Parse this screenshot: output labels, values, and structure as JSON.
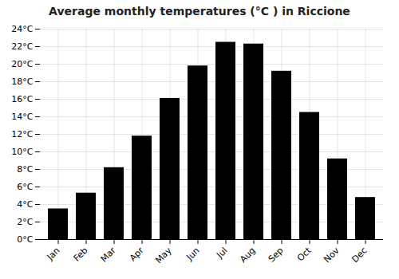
{
  "chart_data": {
    "type": "bar",
    "title": "Average monthly temperatures (°C ) in Riccione",
    "categories": [
      "Jan",
      "Feb",
      "Mar",
      "Apr",
      "May",
      "Jun",
      "Jul",
      "Aug",
      "Sep",
      "Oct",
      "Nov",
      "Dec"
    ],
    "values": [
      3.5,
      5.3,
      8.2,
      11.8,
      16.1,
      19.8,
      22.5,
      22.3,
      19.2,
      14.5,
      9.2,
      4.8
    ],
    "ylim": [
      0,
      24
    ],
    "yticks": [
      {
        "value": 0,
        "label": "0°C"
      },
      {
        "value": 2,
        "label": "2°C"
      },
      {
        "value": 4,
        "label": "4°C"
      },
      {
        "value": 6,
        "label": "6°C"
      },
      {
        "value": 8,
        "label": "8°C"
      },
      {
        "value": 10,
        "label": "10°C"
      },
      {
        "value": 12,
        "label": "12°C"
      },
      {
        "value": 14,
        "label": "14°C"
      },
      {
        "value": 16,
        "label": "16°C"
      },
      {
        "value": 18,
        "label": "18°C"
      },
      {
        "value": 20,
        "label": "20°C"
      },
      {
        "value": 22,
        "label": "22°C"
      },
      {
        "value": 24,
        "label": "24°C"
      }
    ],
    "grid": true
  }
}
